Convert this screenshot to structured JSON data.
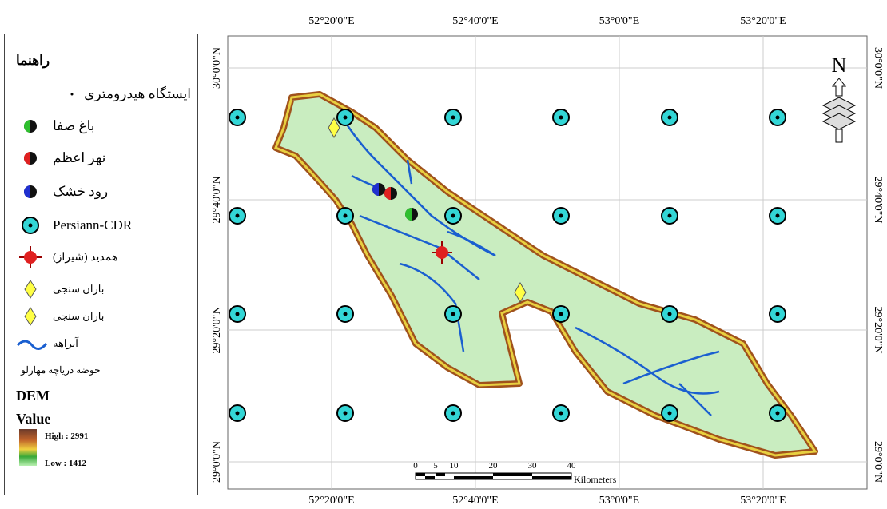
{
  "legend": {
    "title": "راهنما",
    "items": [
      "ایستگاه هیدرومتری",
      "باغ صفا",
      "نهر اعظم",
      "رود خشک",
      "Persiann-CDR",
      "همدید (شیراز)",
      "باران سنجی",
      "باران سنجی",
      "آبراهه",
      "حوضه دریاچه مهارلو"
    ],
    "dem_title": "DEM",
    "value_title": "Value",
    "high": "High : 2991",
    "low": "Low : 1412"
  },
  "map": {
    "lon_labels": [
      "52°20'0\"E",
      "52°40'0\"E",
      "53°0'0\"E",
      "53°20'0\"E"
    ],
    "lat_labels": [
      "30°0'0\"N",
      "29°40'0\"N",
      "29°20'0\"N",
      "29°0'0\"N"
    ],
    "north": "N",
    "scale_labels": [
      "0",
      "5",
      "10",
      "20",
      "30",
      "40"
    ],
    "scale_unit": "Kilometers"
  }
}
